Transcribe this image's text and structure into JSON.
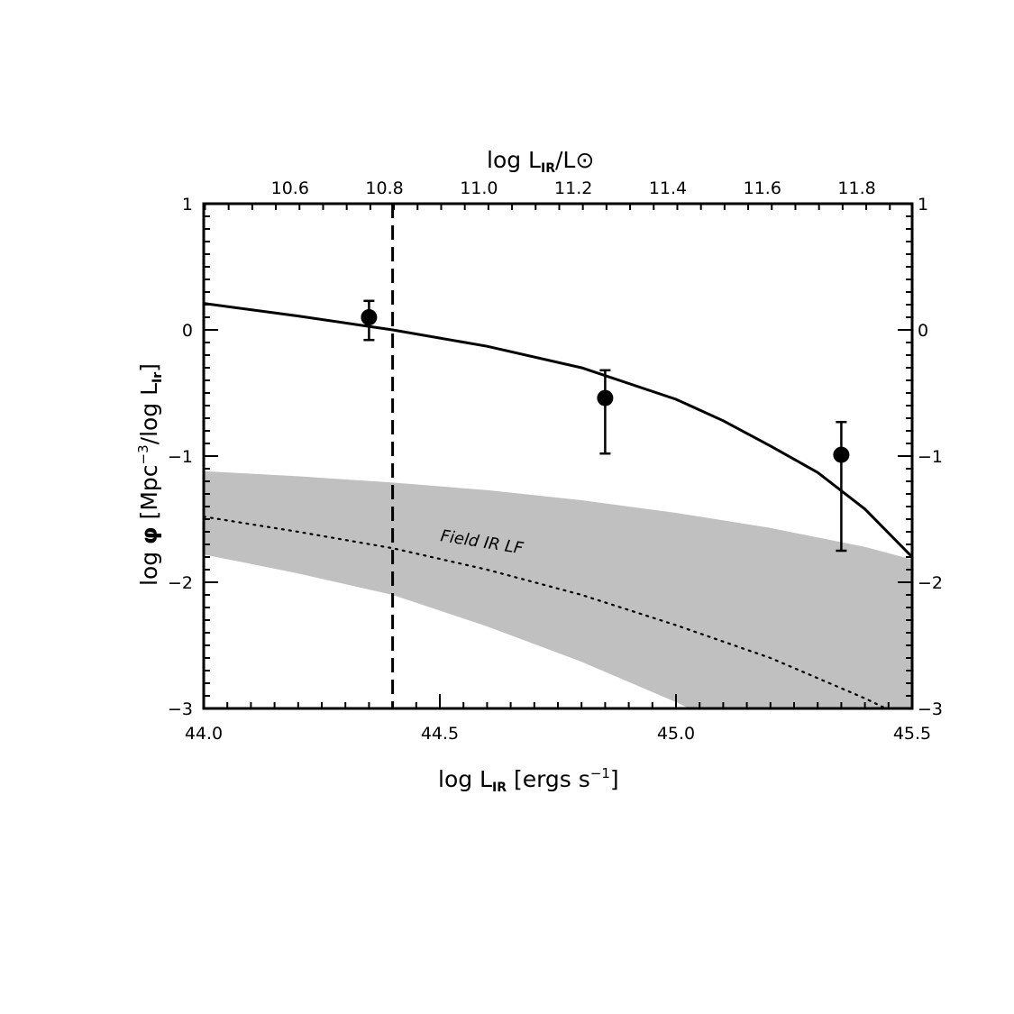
{
  "chart_data": {
    "type": "scatter",
    "title": "",
    "x_bottom": {
      "label_parts": {
        "base": "log L",
        "sub": "IR",
        "unit_open": " [ergs s",
        "sup": "−1",
        "unit_close": "]"
      },
      "range": [
        44.0,
        45.5
      ],
      "ticks": [
        "44.0",
        "44.5",
        "45.0",
        "45.5"
      ],
      "tick_values": [
        44.0,
        44.5,
        45.0,
        45.5
      ]
    },
    "x_top": {
      "label_parts": {
        "base": "log L",
        "sub": "IR",
        "mid": "/L",
        "sun": "⊙"
      },
      "ticks": [
        "10.6",
        "10.8",
        "11.0",
        "11.2",
        "11.4",
        "11.6",
        "11.8"
      ],
      "tick_values": [
        10.6,
        10.8,
        11.0,
        11.2,
        11.4,
        11.6,
        11.8
      ]
    },
    "y_axis": {
      "label_parts": {
        "base": "log ",
        "phi": "φ",
        "unit_open": " [Mpc",
        "sup": "−3",
        "mid": "/log L",
        "sub": "Ir",
        "unit_close": "]"
      },
      "range": [
        -3,
        1
      ],
      "ticks": [
        "−3",
        "−2",
        "−1",
        "0",
        "1"
      ],
      "tick_values": [
        -3,
        -2,
        -1,
        0,
        1
      ]
    },
    "points": {
      "x": [
        44.35,
        44.85,
        45.35
      ],
      "y": [
        0.1,
        -0.54,
        -0.99
      ],
      "y_err_low": [
        -0.08,
        -0.98,
        -1.75
      ],
      "y_err_high": [
        0.23,
        -0.32,
        -0.73
      ]
    },
    "model_curve": {
      "x": [
        44.0,
        44.2,
        44.4,
        44.6,
        44.8,
        45.0,
        45.1,
        45.2,
        45.3,
        45.4,
        45.5
      ],
      "y": [
        0.21,
        0.11,
        0.0,
        -0.13,
        -0.3,
        -0.55,
        -0.72,
        -0.92,
        -1.13,
        -1.42,
        -1.8
      ]
    },
    "field_lf": {
      "name": "Field IR LF",
      "x": [
        44.0,
        44.2,
        44.4,
        44.6,
        44.8,
        45.0,
        45.2,
        45.4,
        45.5
      ],
      "y": [
        -1.48,
        -1.6,
        -1.73,
        -1.9,
        -2.1,
        -2.34,
        -2.6,
        -2.92,
        -3.1
      ],
      "band_upper": [
        -1.12,
        -1.16,
        -1.21,
        -1.27,
        -1.35,
        -1.45,
        -1.57,
        -1.72,
        -1.82
      ],
      "band_lower": [
        -1.78,
        -1.93,
        -2.1,
        -2.35,
        -2.63,
        -2.95,
        -3.3,
        -3.7,
        -3.9
      ]
    },
    "vertical_line": {
      "x": 44.4,
      "style": "dashed"
    },
    "grid": false,
    "colors": {
      "band": "#c0c0c0",
      "line": "#000000"
    }
  }
}
